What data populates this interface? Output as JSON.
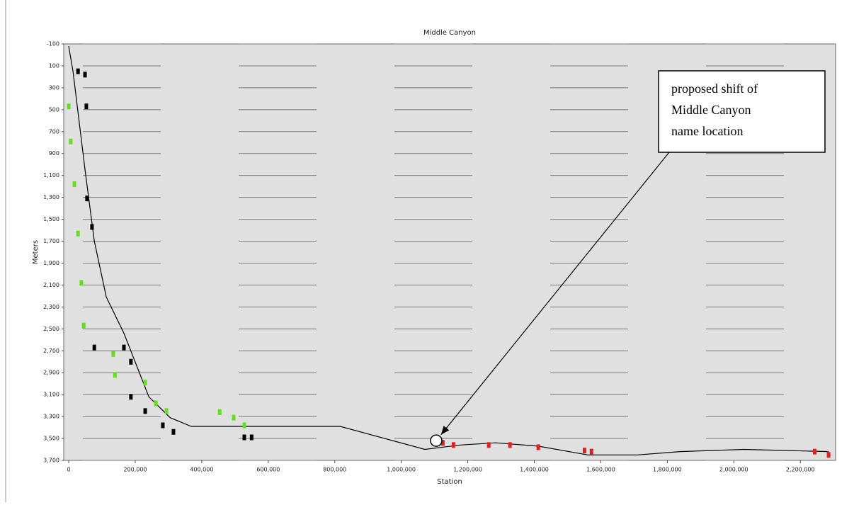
{
  "chart_data": {
    "type": "scatter",
    "title": "Middle Canyon",
    "x_label": "Station",
    "y_label": "Meters",
    "xlim": [
      -15000,
      2306000
    ],
    "ylim": [
      -100,
      3700
    ],
    "y_reversed": true,
    "xticks": [
      0,
      {
        "value": 200000,
        "label": "200,000"
      },
      {
        "value": 400000,
        "label": "400,000"
      },
      {
        "value": 600000,
        "label": "600,000"
      },
      {
        "value": 800000,
        "label": "800,000"
      },
      {
        "value": 1000000,
        "label": "1,000,000"
      },
      {
        "value": 1200000,
        "label": "1,200,000"
      },
      {
        "value": 1400000,
        "label": "1,400,000"
      },
      {
        "value": 1600000,
        "label": "1,600,000"
      },
      {
        "value": 1800000,
        "label": "1,800,000"
      },
      {
        "value": 2000000,
        "label": "2,000,000"
      },
      {
        "value": 2200000,
        "label": "2,200,000"
      }
    ],
    "yticks": [
      -100,
      100,
      300,
      500,
      700,
      900,
      {
        "value": 1100,
        "label": "1,100"
      },
      {
        "value": 1300,
        "label": "1,300"
      },
      {
        "value": 1500,
        "label": "1,500"
      },
      {
        "value": 1700,
        "label": "1,700"
      },
      {
        "value": 1900,
        "label": "1,900"
      },
      {
        "value": 2100,
        "label": "2,100"
      },
      {
        "value": 2300,
        "label": "2,300"
      },
      {
        "value": 2500,
        "label": "2,500"
      },
      {
        "value": 2700,
        "label": "2,700"
      },
      {
        "value": 2900,
        "label": "2,900"
      },
      {
        "value": 3100,
        "label": "3,100"
      },
      {
        "value": 3300,
        "label": "3,300"
      },
      {
        "value": 3500,
        "label": "3,500"
      },
      {
        "value": 3700,
        "label": "3,700"
      }
    ],
    "grid": true,
    "line": {
      "color": "#000000",
      "x": [
        0,
        13000,
        49000,
        77000,
        113000,
        166000,
        241000,
        305000,
        368000,
        539000,
        816000,
        1071000,
        1178000,
        1284000,
        1412000,
        1561000,
        1710000,
        1838000,
        2030000,
        2285000
      ],
      "y": [
        -80,
        150,
        1050,
        1700,
        2210,
        2540,
        3120,
        3310,
        3390,
        3390,
        3390,
        3600,
        3560,
        3540,
        3570,
        3650,
        3650,
        3620,
        3600,
        3620
      ]
    },
    "series": [
      {
        "color": "#66dd22",
        "x": [
          0,
          6000,
          17000,
          28000,
          38000,
          45000,
          134000,
          139000,
          230000,
          262000,
          294000,
          454000,
          496000,
          528000
        ],
        "values": [
          470,
          790,
          1180,
          1630,
          2080,
          2470,
          2730,
          2920,
          2990,
          3180,
          3250,
          3260,
          3310,
          3380
        ]
      },
      {
        "color": "#000000",
        "x": [
          28000,
          49000,
          53000,
          55000,
          70000,
          77000,
          166000,
          187000,
          187000,
          230000,
          283000,
          315000,
          528000,
          550000
        ],
        "values": [
          150,
          180,
          470,
          1310,
          1570,
          2670,
          2670,
          2800,
          3120,
          3250,
          3380,
          3440,
          3490,
          3490
        ]
      },
      {
        "color": "#dd2222",
        "x": [
          1125000,
          1157000,
          1263000,
          1327000,
          1412000,
          1551000,
          1572000,
          2243000,
          2285000
        ],
        "values": [
          3540,
          3560,
          3560,
          3560,
          3580,
          3610,
          3620,
          3620,
          3650
        ]
      }
    ],
    "annotation": {
      "lines": [
        "proposed shift of",
        "Middle Canyon",
        "name location"
      ],
      "x": 1105000,
      "y": 3520
    }
  }
}
